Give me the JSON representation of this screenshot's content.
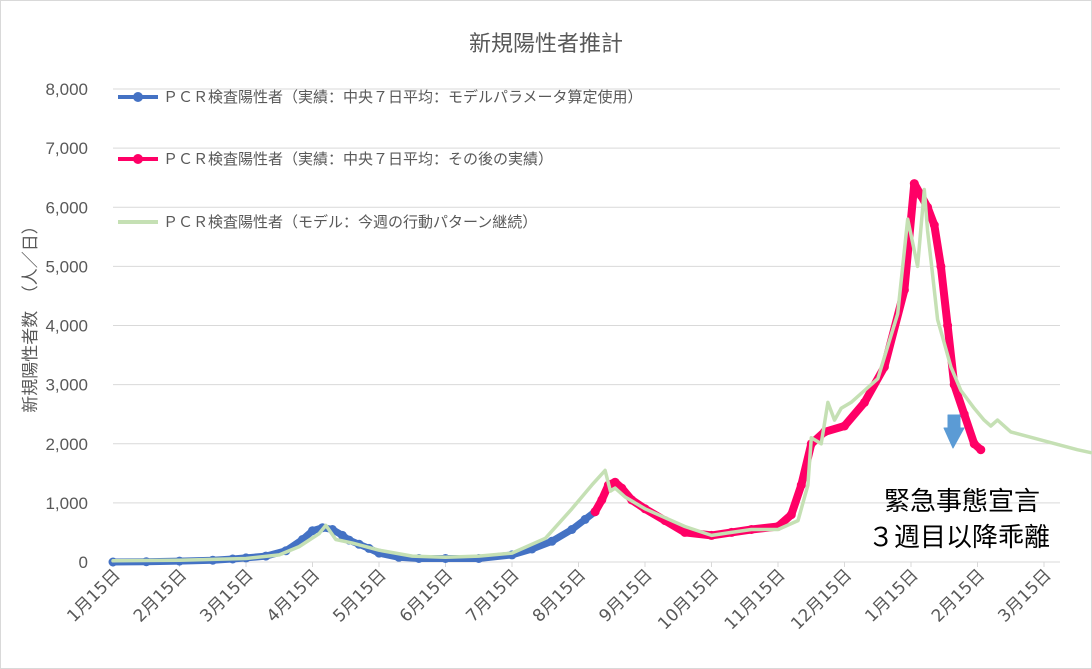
{
  "chart_data": {
    "type": "line",
    "title": "新規陽性者推計",
    "ylabel": "新規陽性者数　（人／日）",
    "xlabel": "",
    "ylim": [
      0,
      8000
    ],
    "yticks": [
      "0",
      "1,000",
      "2,000",
      "3,000",
      "4,000",
      "5,000",
      "6,000",
      "7,000",
      "8,000"
    ],
    "categories": [
      "1月15日",
      "2月15日",
      "3月15日",
      "4月15日",
      "5月15日",
      "6月15日",
      "7月15日",
      "8月15日",
      "9月15日",
      "10月15日",
      "11月15日",
      "12月15日",
      "1月15日",
      "2月15日",
      "3月15日"
    ],
    "grid": true,
    "legend_position": "top-left",
    "annotation": [
      "緊急事態宣言",
      "３週目以降乖離"
    ],
    "colors": {
      "actual_model": "#4472c4",
      "actual_after": "#ff0066",
      "model": "#c5e0b4",
      "arrow": "#5b9bd5",
      "grid": "#d9d9d9",
      "text": "#595959"
    },
    "series": [
      {
        "name": "ＰＣＲ検査陽性者（実績：中央７日平均：モデルパラメータ算定使用）",
        "x": [
          0,
          0.5,
          1,
          1.5,
          1.8,
          2,
          2.3,
          2.6,
          2.85,
          3,
          3.15,
          3.3,
          3.45,
          3.55,
          3.7,
          3.85,
          4,
          4.3,
          4.6,
          5,
          5.5,
          6,
          6.3,
          6.6,
          6.9,
          7.1,
          7.25
        ],
        "values": [
          0,
          5,
          15,
          30,
          50,
          70,
          100,
          190,
          380,
          530,
          580,
          550,
          450,
          370,
          300,
          230,
          150,
          80,
          60,
          60,
          60,
          120,
          220,
          350,
          550,
          720,
          850
        ]
      },
      {
        "name": "ＰＣＲ検査陽性者（実績：中央７日平均：その後の実績）",
        "x": [
          7.25,
          7.35,
          7.45,
          7.55,
          7.65,
          7.8,
          8,
          8.3,
          8.6,
          9,
          9.3,
          9.6,
          10,
          10.2,
          10.35,
          10.5,
          10.7,
          11,
          11.3,
          11.6,
          11.9,
          12.05,
          12.15,
          12.25,
          12.35,
          12.45,
          12.55,
          12.65,
          12.8,
          12.95,
          13.05
        ],
        "values": [
          850,
          1050,
          1300,
          1350,
          1250,
          1050,
          900,
          700,
          500,
          450,
          500,
          550,
          600,
          800,
          1300,
          2000,
          2200,
          2300,
          2700,
          3300,
          4600,
          6400,
          6200,
          6000,
          5700,
          5000,
          4000,
          3000,
          2500,
          2000,
          1900
        ]
      },
      {
        "name": "ＰＣＲ検査陽性者（モデル：今週の行動パターン継続）",
        "x": [
          0,
          1,
          2,
          2.5,
          2.8,
          3.1,
          3.2,
          3.35,
          3.6,
          4,
          4.5,
          5,
          5.5,
          6,
          6.5,
          6.9,
          7.2,
          7.4,
          7.48,
          7.55,
          7.7,
          8,
          8.3,
          8.6,
          9,
          9.3,
          9.6,
          10,
          10.3,
          10.45,
          10.5,
          10.65,
          10.75,
          10.85,
          10.95,
          11.1,
          11.3,
          11.5,
          11.8,
          11.95,
          12.1,
          12.2,
          12.25,
          12.3,
          12.4,
          12.5,
          12.6,
          12.75,
          12.95,
          13.1,
          13.2,
          13.3,
          13.5,
          14,
          14.5,
          14.7
        ],
        "values": [
          20,
          30,
          60,
          120,
          260,
          480,
          620,
          380,
          320,
          200,
          100,
          80,
          100,
          150,
          400,
          900,
          1300,
          1550,
          1200,
          1250,
          1100,
          900,
          750,
          600,
          450,
          500,
          550,
          550,
          700,
          1300,
          2100,
          2000,
          2700,
          2400,
          2600,
          2700,
          2900,
          3100,
          4200,
          5800,
          5000,
          6300,
          5600,
          5100,
          4100,
          3700,
          3300,
          2900,
          2600,
          2400,
          2300,
          2400,
          2200,
          2050,
          1900,
          1850
        ]
      }
    ]
  }
}
